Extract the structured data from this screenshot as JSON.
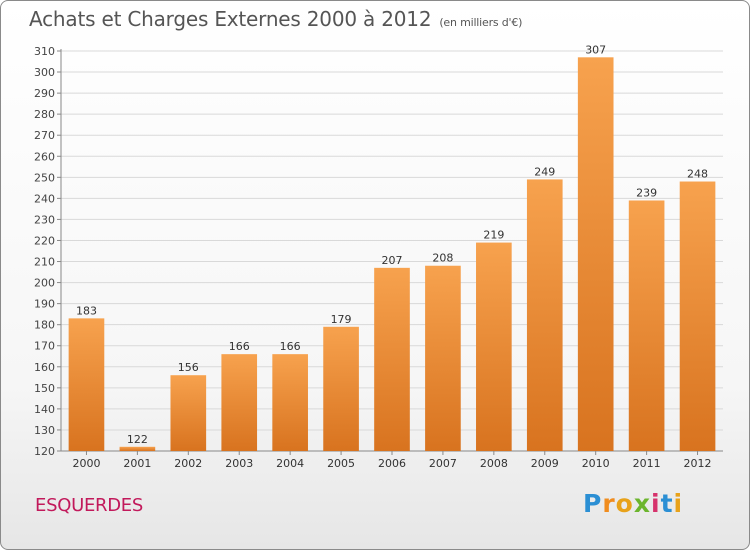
{
  "title": "Achats et Charges Externes 2000 à 2012",
  "unit": "(en milliers d'€)",
  "commune": "ESQUERDES",
  "logo": {
    "letters": [
      "P",
      "r",
      "o",
      "x",
      "i",
      "t",
      "i"
    ],
    "colors": [
      "#2b8fd4",
      "#f08c1e",
      "#e8a21a",
      "#6cb52d",
      "#d6336c",
      "#2b8fd4",
      "#e8a21a"
    ]
  },
  "colors": {
    "bar_top": "#f7a24e",
    "bar_bottom": "#d8731f",
    "commune": "#c2195b"
  },
  "chart_data": {
    "type": "bar",
    "categories": [
      "2000",
      "2001",
      "2002",
      "2003",
      "2004",
      "2005",
      "2006",
      "2007",
      "2008",
      "2009",
      "2010",
      "2011",
      "2012"
    ],
    "values": [
      183,
      122,
      156,
      166,
      166,
      179,
      207,
      208,
      219,
      249,
      307,
      239,
      248
    ],
    "ylim": [
      120,
      310
    ],
    "yticks": [
      120,
      130,
      140,
      150,
      160,
      170,
      180,
      190,
      200,
      210,
      220,
      230,
      240,
      250,
      260,
      270,
      280,
      290,
      300,
      310
    ],
    "grid": true,
    "title": "Achats et Charges Externes 2000 à 2012",
    "xlabel": "",
    "ylabel": ""
  }
}
